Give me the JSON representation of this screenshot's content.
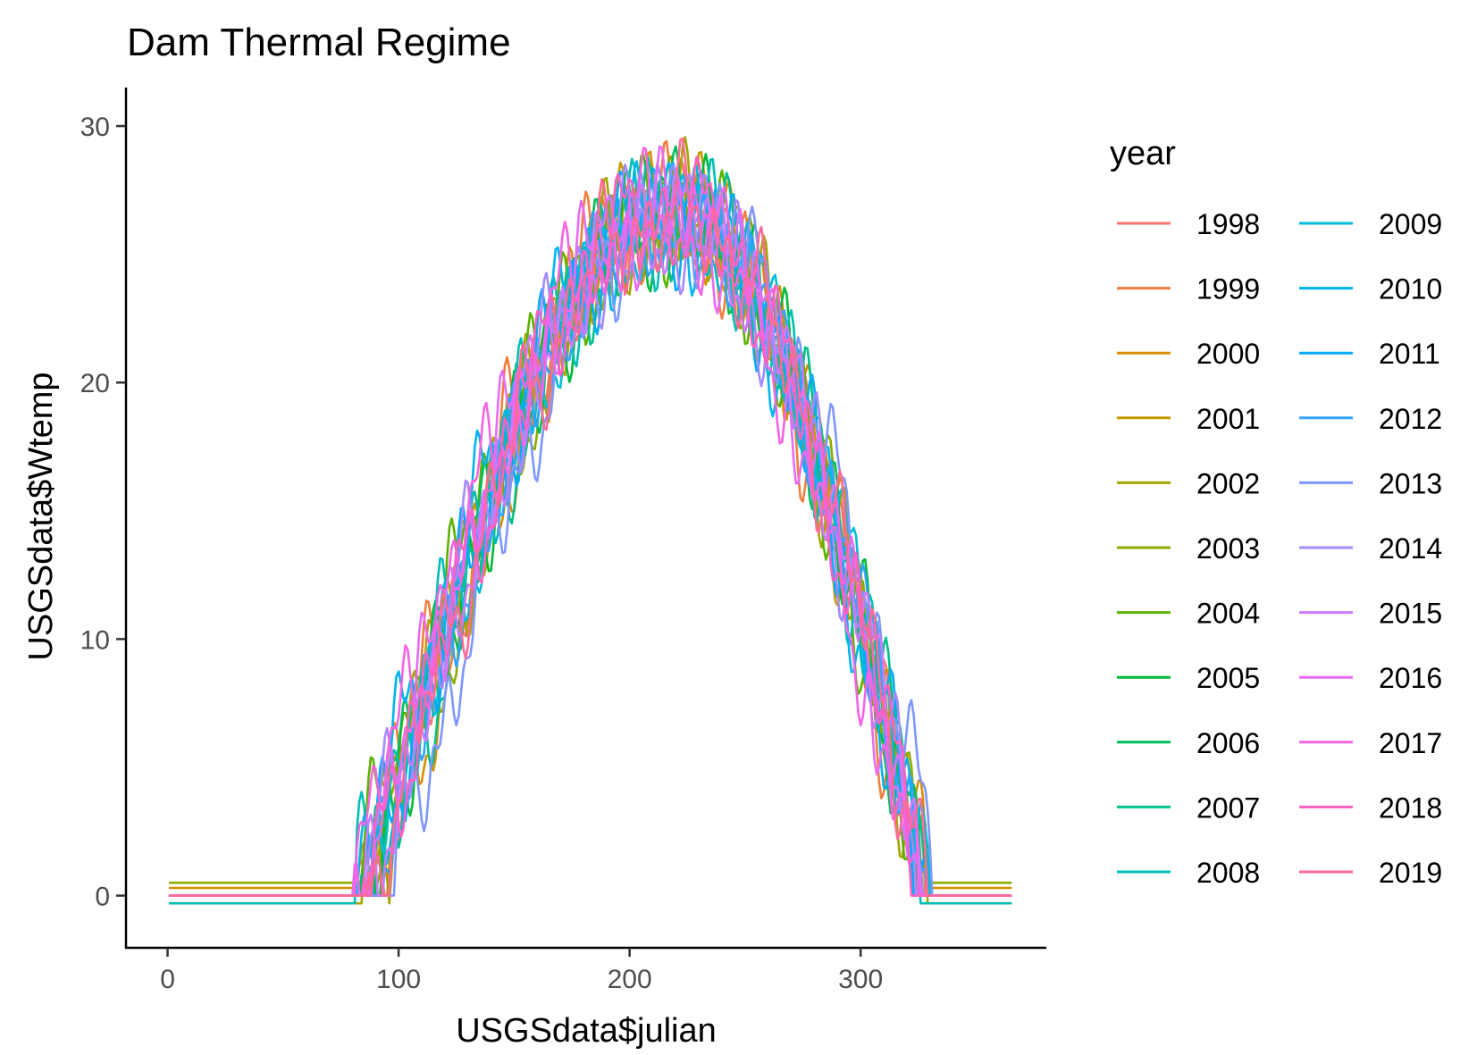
{
  "chart_data": {
    "type": "line",
    "title": "Dam Thermal Regime",
    "xlabel": "USGSdata$julian",
    "ylabel": "USGSdata$Wtemp",
    "xlim": [
      -18,
      380
    ],
    "ylim": [
      -2,
      31.5
    ],
    "xticks": [
      0,
      100,
      200,
      300
    ],
    "yticks": [
      0,
      10,
      20,
      30
    ],
    "grid": false,
    "legend": {
      "title": "year",
      "placement": "right",
      "columns": 2
    },
    "series": [
      {
        "name": "1998",
        "color": "#F8766D",
        "offset": 0.0,
        "shift": 2,
        "phase": 0.3
      },
      {
        "name": "1999",
        "color": "#F07F3E",
        "offset": 0.0,
        "shift": -4,
        "phase": 1.1
      },
      {
        "name": "2000",
        "color": "#D89000",
        "offset": 0.3,
        "shift": 5,
        "phase": 2.0
      },
      {
        "name": "2001",
        "color": "#C49A00",
        "offset": 0.0,
        "shift": -2,
        "phase": 2.9
      },
      {
        "name": "2002",
        "color": "#A3A500",
        "offset": -0.3,
        "shift": 0,
        "phase": 3.7
      },
      {
        "name": "2003",
        "color": "#8AAB00",
        "offset": 0.5,
        "shift": 3,
        "phase": 4.4
      },
      {
        "name": "2004",
        "color": "#5BB300",
        "offset": 0.0,
        "shift": -5,
        "phase": 5.2
      },
      {
        "name": "2005",
        "color": "#00BA38",
        "offset": 0.0,
        "shift": 1,
        "phase": 6.1
      },
      {
        "name": "2006",
        "color": "#00BD5C",
        "offset": 0.0,
        "shift": -1,
        "phase": 0.8
      },
      {
        "name": "2007",
        "color": "#00C08B",
        "offset": 0.0,
        "shift": 4,
        "phase": 1.6
      },
      {
        "name": "2008",
        "color": "#00BFB4",
        "offset": -0.3,
        "shift": -3,
        "phase": 2.4
      },
      {
        "name": "2009",
        "color": "#00BCD8",
        "offset": 0.0,
        "shift": 2,
        "phase": 3.3
      },
      {
        "name": "2010",
        "color": "#00B5EE",
        "offset": 0.0,
        "shift": -6,
        "phase": 4.0
      },
      {
        "name": "2011",
        "color": "#00ABFD",
        "offset": 0.0,
        "shift": 0,
        "phase": 4.8
      },
      {
        "name": "2012",
        "color": "#35A2FF",
        "offset": 0.0,
        "shift": 3,
        "phase": 5.6
      },
      {
        "name": "2013",
        "color": "#7F96FF",
        "offset": 0.0,
        "shift": 12,
        "phase": 0.5
      },
      {
        "name": "2014",
        "color": "#A58AFF",
        "offset": 0.0,
        "shift": -2,
        "phase": 1.3
      },
      {
        "name": "2015",
        "color": "#CC7BFF",
        "offset": 0.0,
        "shift": 1,
        "phase": 2.2
      },
      {
        "name": "2016",
        "color": "#E76BF3",
        "offset": 0.0,
        "shift": -4,
        "phase": 3.0
      },
      {
        "name": "2017",
        "color": "#F564E3",
        "offset": 0.0,
        "shift": -8,
        "phase": 3.9
      },
      {
        "name": "2018",
        "color": "#FF61C3",
        "offset": 0.0,
        "shift": 0,
        "phase": 4.6
      },
      {
        "name": "2019",
        "color": "#FF6A98",
        "offset": 0.0,
        "shift": 2,
        "phase": 5.4
      }
    ]
  }
}
